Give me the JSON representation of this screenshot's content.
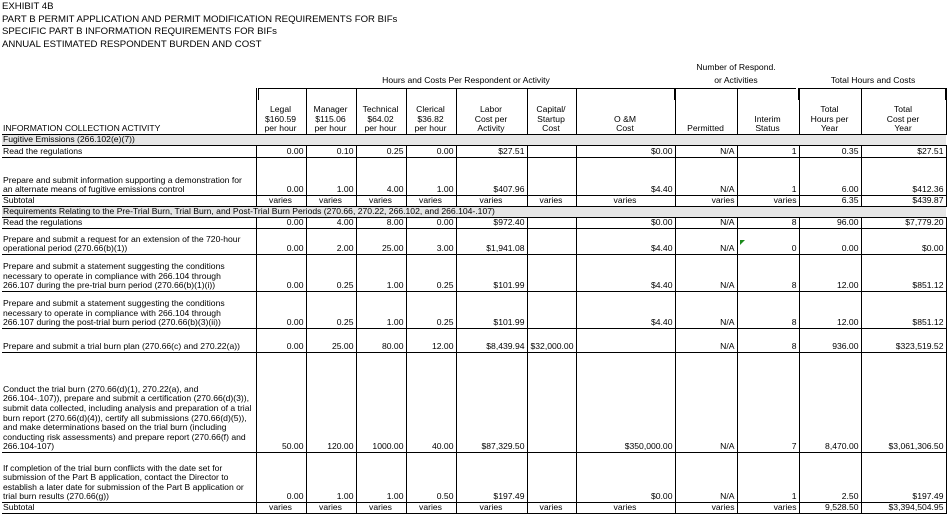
{
  "titles": [
    "EXHIBIT 4B",
    "PART B PERMIT APPLICATION AND PERMIT MODIFICATION REQUIREMENTS FOR BIFs",
    "SPECIFIC PART B INFORMATION REQUIREMENTS FOR BIFs",
    "ANNUAL ESTIMATED RESPONDENT BURDEN AND COST"
  ],
  "group_headers": {
    "hours_costs": "Hours and Costs Per Respondent or Activity",
    "respond_line1": "Number of Respond.",
    "respond_line2": "or Activities",
    "totals": "Total Hours and Costs"
  },
  "columns": [
    {
      "key": "activity",
      "label": "INFORMATION COLLECTION ACTIVITY"
    },
    {
      "key": "legal",
      "label": "Legal\n$160.59\nper hour"
    },
    {
      "key": "manager",
      "label": "Manager\n$115.06\nper hour"
    },
    {
      "key": "technical",
      "label": "Technical\n$64.02\nper hour"
    },
    {
      "key": "clerical",
      "label": "Clerical\n$36.82\nper hour"
    },
    {
      "key": "labor",
      "label": "Labor\nCost per\nActivity"
    },
    {
      "key": "capital",
      "label": "Capital/\nStartup\nCost"
    },
    {
      "key": "om",
      "label": "O &M\nCost"
    },
    {
      "key": "permitted",
      "label": "Permitted"
    },
    {
      "key": "interim",
      "label": "Interim\nStatus"
    },
    {
      "key": "tot_hours",
      "label": "Total\nHours per\nYear"
    },
    {
      "key": "tot_cost",
      "label": "Total\nCost per\nYear"
    }
  ],
  "rows": [
    {
      "type": "section",
      "text": "Fugitive Emissions (266.102(e)(7))"
    },
    {
      "type": "data",
      "h": 12,
      "cells": [
        "Read the regulations",
        "0.00",
        "0.10",
        "0.25",
        "0.00",
        "$27.51",
        "",
        "$0.00",
        "N/A",
        "1",
        "0.35",
        "$27.51"
      ]
    },
    {
      "type": "data",
      "h": 38,
      "cells": [
        "Prepare and submit information supporting a demonstration for an alternate means of fugitive emissions control",
        "0.00",
        "1.00",
        "4.00",
        "1.00",
        "$407.96",
        "",
        "$4.40",
        "N/A",
        "1",
        "6.00",
        "$412.36"
      ]
    },
    {
      "type": "data",
      "h": 11,
      "cells": [
        "Subtotal",
        "varies",
        "varies",
        "varies",
        "varies",
        "varies",
        "varies",
        "varies",
        "varies",
        "varies",
        "6.35",
        "$439.87"
      ]
    },
    {
      "type": "section",
      "text": "Requirements Relating to the Pre-Trial Burn, Trial Burn, and Post-Trial Burn Periods (270.66, 270.22, 266.102, and 266.104-.107)"
    },
    {
      "type": "data",
      "h": 11,
      "cells": [
        "Read the regulations",
        "0.00",
        "4.00",
        "8.00",
        "0.00",
        "$972.40",
        "",
        "$0.00",
        "N/A",
        "8",
        "96.00",
        "$7,779.20"
      ]
    },
    {
      "type": "data",
      "h": 26,
      "cells": [
        "Prepare and submit a request for an extension of the 720-hour operational period (270.66(b)(1))",
        "0.00",
        "2.00",
        "25.00",
        "3.00",
        "$1,941.08",
        "",
        "$4.40",
        "N/A",
        "0",
        "0.00",
        "$0.00"
      ]
    },
    {
      "type": "data",
      "h": 37,
      "cells": [
        "Prepare and submit a statement suggesting the conditions necessary to operate in compliance with 266.104 through 266.107 during the pre-trial burn period (270.66(b)(1)(i))",
        "0.00",
        "0.25",
        "1.00",
        "0.25",
        "$101.99",
        "",
        "$4.40",
        "N/A",
        "8",
        "12.00",
        "$851.12"
      ]
    },
    {
      "type": "data",
      "h": 37,
      "cells": [
        "Prepare and submit a statement suggesting the conditions necessary to operate in compliance with 266.104 through 266.107 during the post-trial burn period (270.66(b)(3)(ii))",
        "0.00",
        "0.25",
        "1.00",
        "0.25",
        "$101.99",
        "",
        "$4.40",
        "N/A",
        "8",
        "12.00",
        "$851.12"
      ]
    },
    {
      "type": "data",
      "h": 24,
      "cells": [
        "Prepare and submit a trial burn plan (270.66(c) and 270.22(a))",
        "0.00",
        "25.00",
        "80.00",
        "12.00",
        "$8,439.94",
        "$32,000.00",
        "",
        "N/A",
        "8",
        "936.00",
        "$323,519.52"
      ]
    },
    {
      "type": "data",
      "h": 100,
      "cells": [
        "Conduct the trial burn (270.66(d)(1), 270.22(a), and 266.104-.107)), prepare and submit a certification (270.66(d)(3)), submit data collected, including analysis and preparation of a trial burn report (270.66(d)(4)), certify all submissions (270.66(d)(5)), and make determinations based on the trial burn (including conducting risk assessments) and prepare report (270.66(f) and 266.104-107)",
        "50.00",
        "120.00",
        "1000.00",
        "40.00",
        "$87,329.50",
        "",
        "$350,000.00",
        "N/A",
        "7",
        "8,470.00",
        "$3,061,306.50"
      ]
    },
    {
      "type": "data",
      "h": 50,
      "cells": [
        "If completion of the trial burn conflicts with the date set for submission of the Part B application, contact the Director to establish a later date for submission of the Part B application or trial burn results (270.66(g))",
        "0.00",
        "1.00",
        "1.00",
        "0.50",
        "$197.49",
        "",
        "$0.00",
        "N/A",
        "1",
        "2.50",
        "$197.49"
      ]
    },
    {
      "type": "data",
      "h": 11,
      "cells": [
        "Subtotal",
        "varies",
        "varies",
        "varies",
        "varies",
        "varies",
        "varies",
        "varies",
        "varies",
        "varies",
        "9,528.50",
        "$3,394,504.95"
      ]
    }
  ]
}
